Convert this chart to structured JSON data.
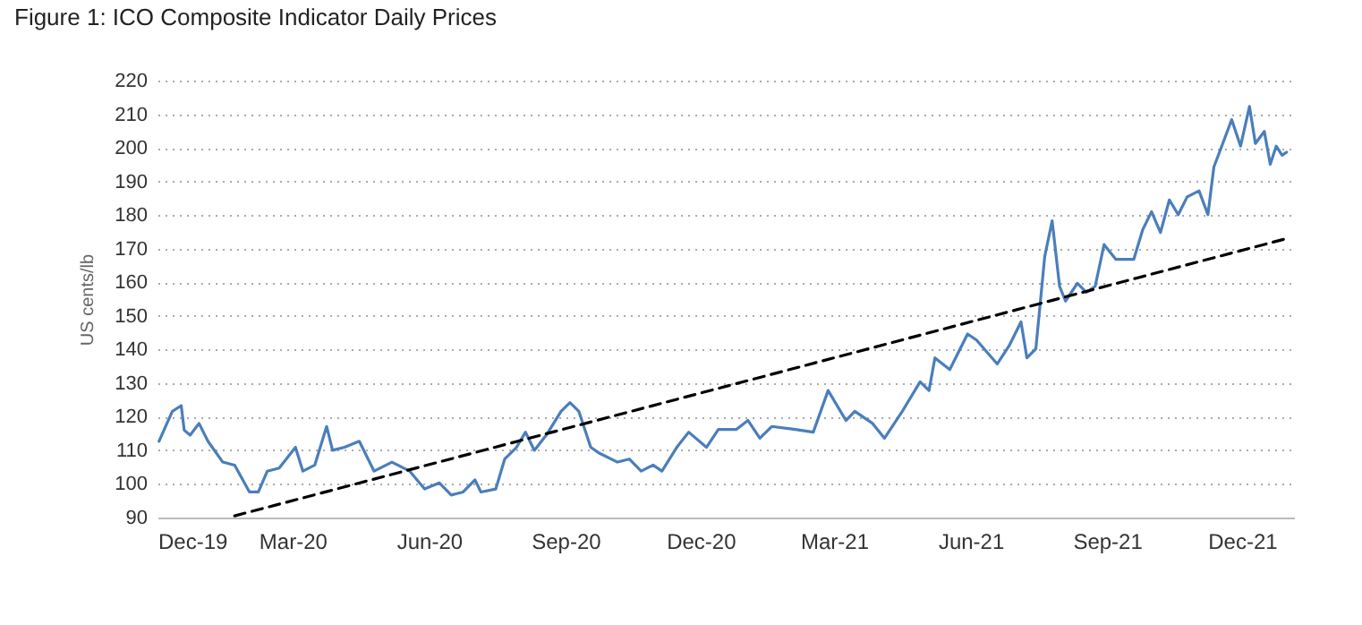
{
  "chart_data": {
    "type": "line",
    "title": "Figure 1: ICO Composite Indicator Daily Prices",
    "ylabel": "US cents/lb",
    "xlim": [
      "2019-12-01",
      "2022-01-05"
    ],
    "ylim": [
      90,
      220
    ],
    "xticks": [
      {
        "value": "2019-12-01",
        "label": "Dec-19"
      },
      {
        "value": "2020-03-01",
        "label": "Mar-20"
      },
      {
        "value": "2020-06-01",
        "label": "Jun-20"
      },
      {
        "value": "2020-09-01",
        "label": "Sep-20"
      },
      {
        "value": "2020-12-01",
        "label": "Dec-20"
      },
      {
        "value": "2021-03-01",
        "label": "Mar-21"
      },
      {
        "value": "2021-06-01",
        "label": "Jun-21"
      },
      {
        "value": "2021-09-01",
        "label": "Sep-21"
      },
      {
        "value": "2021-12-01",
        "label": "Dec-21"
      }
    ],
    "yticks": [
      90,
      100,
      110,
      120,
      130,
      140,
      150,
      160,
      170,
      180,
      190,
      200,
      210,
      220
    ],
    "grid": "y",
    "marker": "none",
    "series": [
      {
        "color": "#4a7ebb",
        "line_style": "solid",
        "x": [
          "2019-12-02",
          "2019-12-11",
          "2019-12-17",
          "2019-12-19",
          "2019-12-23",
          "2019-12-29",
          "2020-01-04",
          "2020-01-14",
          "2020-01-22",
          "2020-02-01",
          "2020-02-07",
          "2020-02-13",
          "2020-02-21",
          "2020-03-03",
          "2020-03-08",
          "2020-03-16",
          "2020-03-24",
          "2020-03-28",
          "2020-04-05",
          "2020-04-15",
          "2020-04-25",
          "2020-05-07",
          "2020-05-19",
          "2020-05-29",
          "2020-06-08",
          "2020-06-16",
          "2020-06-24",
          "2020-07-02",
          "2020-07-06",
          "2020-07-16",
          "2020-07-22",
          "2020-07-30",
          "2020-08-05",
          "2020-08-11",
          "2020-08-19",
          "2020-08-29",
          "2020-09-04",
          "2020-09-10",
          "2020-09-18",
          "2020-09-24",
          "2020-10-06",
          "2020-10-14",
          "2020-10-22",
          "2020-10-30",
          "2020-11-05",
          "2020-11-15",
          "2020-11-23",
          "2020-12-05",
          "2020-12-13",
          "2020-12-25",
          "2021-01-02",
          "2021-01-10",
          "2021-01-18",
          "2021-02-03",
          "2021-02-15",
          "2021-02-25",
          "2021-03-09",
          "2021-03-15",
          "2021-03-27",
          "2021-04-04",
          "2021-04-16",
          "2021-04-28",
          "2021-05-04",
          "2021-05-08",
          "2021-05-18",
          "2021-05-30",
          "2021-06-05",
          "2021-06-19",
          "2021-06-27",
          "2021-07-05",
          "2021-07-09",
          "2021-07-15",
          "2021-07-21",
          "2021-07-26",
          "2021-07-31",
          "2021-08-04",
          "2021-08-12",
          "2021-08-18",
          "2021-08-24",
          "2021-08-30",
          "2021-09-07",
          "2021-09-19",
          "2021-09-25",
          "2021-10-01",
          "2021-10-07",
          "2021-10-13",
          "2021-10-19",
          "2021-10-25",
          "2021-11-02",
          "2021-11-08",
          "2021-11-12",
          "2021-11-18",
          "2021-11-24",
          "2021-11-30",
          "2021-12-06",
          "2021-12-10",
          "2021-12-16",
          "2021-12-20",
          "2021-12-24",
          "2021-12-28",
          "2021-12-31"
        ],
        "values": [
          112.7,
          121.6,
          123.3,
          116,
          114.5,
          118,
          112.7,
          106.5,
          105.6,
          97.6,
          97.6,
          103.8,
          104.7,
          110.9,
          103.8,
          105.6,
          117.1,
          110,
          110.9,
          112.7,
          103.8,
          106.5,
          103.8,
          98.5,
          100.3,
          96.7,
          97.6,
          101.2,
          97.6,
          98.5,
          107.4,
          110.9,
          115.4,
          110,
          114.5,
          121.6,
          124.2,
          121.6,
          110.9,
          109.1,
          106.5,
          107.4,
          103.8,
          105.6,
          103.8,
          110.9,
          115.4,
          110.9,
          116.2,
          116.2,
          118.9,
          113.6,
          117.1,
          116.2,
          115.4,
          127.8,
          118.9,
          121.6,
          118,
          113.6,
          121.6,
          130.4,
          127.8,
          137.5,
          134,
          144.6,
          142.8,
          135.7,
          141.1,
          148.2,
          137.5,
          140.2,
          167.7,
          178.3,
          158.8,
          154.4,
          159.7,
          157,
          158.8,
          171.2,
          166.8,
          166.8,
          175.6,
          181,
          174.8,
          184.5,
          180.1,
          185.4,
          187.2,
          180.1,
          194.3,
          201.3,
          208.4,
          200.5,
          212.3,
          201.3,
          204.9,
          195.1,
          200.5,
          197.8,
          198.7
        ]
      },
      {
        "color": "#000000",
        "line_style": "dashed",
        "x": [
          "2020-01-22",
          "2021-12-31"
        ],
        "values": [
          90.5,
          173
        ]
      }
    ]
  }
}
